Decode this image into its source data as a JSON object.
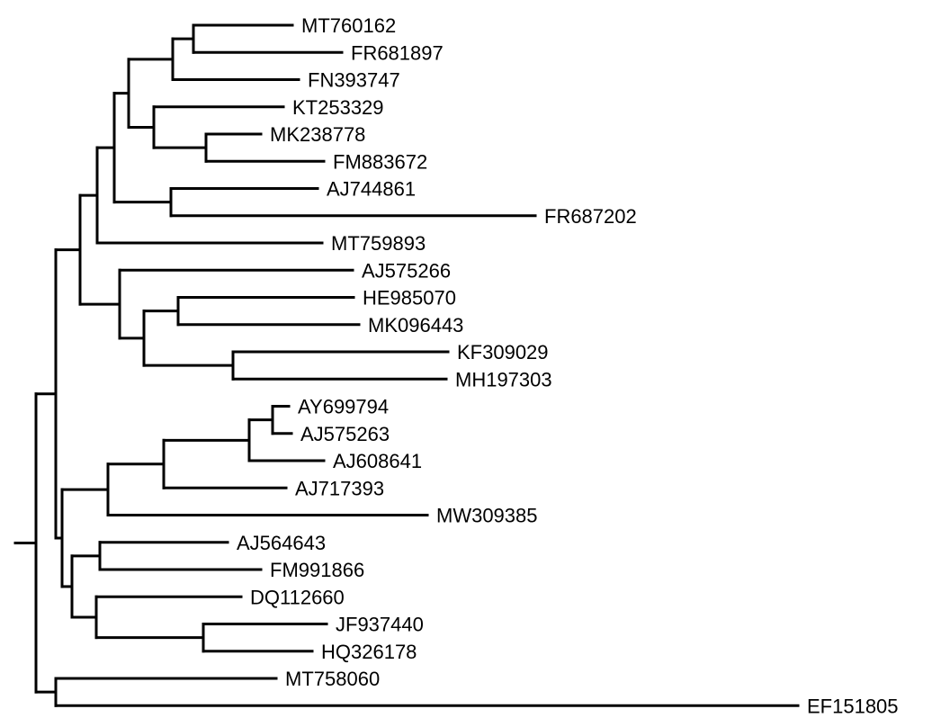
{
  "colors": {
    "branch": "#000000",
    "label": "#000000",
    "background": "#ffffff"
  },
  "leaves": [
    "MT760162",
    "FR681897",
    "FN393747",
    "KT253329",
    "MK238778",
    "FM883672",
    "AJ744861",
    "FR687202",
    "MT759893",
    "AJ575266",
    "HE985070",
    "MK096443",
    "KF309029",
    "MH197303",
    "AY699794",
    "AJ575263",
    "AJ608641",
    "AJ717393",
    "MW309385",
    "AJ564643",
    "FM991866",
    "DQ112660",
    "JF937440",
    "HQ326178",
    "MT758060",
    "EF151805"
  ],
  "tree": {
    "l": 0.023,
    "c": [
      {
        "l": 0.022,
        "c": [
          {
            "l": 0.027,
            "c": [
              {
                "l": 0.019,
                "c": [
                  {
                    "l": 0.019,
                    "c": [
                      {
                        "l": 0.016,
                        "c": [
                          {
                            "l": 0.049,
                            "c": [
                              {
                                "l": 0.023,
                                "c": [
                                  {
                                    "l": 0.11,
                                    "leaf": 0
                                  },
                                  {
                                    "l": 0.165,
                                    "leaf": 1
                                  }
                                ]
                              },
                              {
                                "l": 0.14,
                                "leaf": 2
                              }
                            ]
                          },
                          {
                            "l": 0.028,
                            "c": [
                              {
                                "l": 0.144,
                                "leaf": 3
                              },
                              {
                                "l": 0.058,
                                "c": [
                                  {
                                    "l": 0.061,
                                    "leaf": 4
                                  },
                                  {
                                    "l": 0.131,
                                    "leaf": 5
                                  }
                                ]
                              }
                            ]
                          }
                        ]
                      },
                      {
                        "l": 0.063,
                        "c": [
                          {
                            "l": 0.163,
                            "leaf": 6
                          },
                          {
                            "l": 0.405,
                            "leaf": 7
                          }
                        ]
                      }
                    ]
                  },
                  {
                    "l": 0.25,
                    "leaf": 8
                  }
                ]
              },
              {
                "l": 0.044,
                "c": [
                  {
                    "l": 0.259,
                    "leaf": 9
                  },
                  {
                    "l": 0.027,
                    "c": [
                      {
                        "l": 0.038,
                        "c": [
                          {
                            "l": 0.195,
                            "leaf": 10
                          },
                          {
                            "l": 0.201,
                            "leaf": 11
                          }
                        ]
                      },
                      {
                        "l": 0.099,
                        "c": [
                          {
                            "l": 0.239,
                            "leaf": 12
                          },
                          {
                            "l": 0.237,
                            "leaf": 13
                          }
                        ]
                      }
                    ]
                  }
                ]
              }
            ]
          },
          {
            "l": 0.007,
            "c": [
              {
                "l": 0.051,
                "c": [
                  {
                    "l": 0.062,
                    "c": [
                      {
                        "l": 0.095,
                        "c": [
                          {
                            "l": 0.026,
                            "c": [
                              {
                                "l": 0.018,
                                "leaf": 14
                              },
                              {
                                "l": 0.021,
                                "leaf": 15
                              }
                            ]
                          },
                          {
                            "l": 0.083,
                            "leaf": 16
                          }
                        ]
                      },
                      {
                        "l": 0.136,
                        "leaf": 17
                      }
                    ]
                  },
                  {
                    "l": 0.355,
                    "leaf": 18
                  }
                ]
              },
              {
                "l": 0.011,
                "c": [
                  {
                    "l": 0.031,
                    "c": [
                      {
                        "l": 0.142,
                        "leaf": 19
                      },
                      {
                        "l": 0.179,
                        "leaf": 20
                      }
                    ]
                  },
                  {
                    "l": 0.027,
                    "c": [
                      {
                        "l": 0.161,
                        "leaf": 21
                      },
                      {
                        "l": 0.119,
                        "c": [
                          {
                            "l": 0.137,
                            "leaf": 22
                          },
                          {
                            "l": 0.121,
                            "leaf": 23
                          }
                        ]
                      }
                    ]
                  }
                ]
              }
            ]
          }
        ]
      },
      {
        "l": 0.022,
        "c": [
          {
            "l": 0.245,
            "leaf": 24
          },
          {
            "l": 0.825,
            "leaf": 25
          }
        ]
      }
    ]
  }
}
